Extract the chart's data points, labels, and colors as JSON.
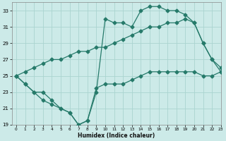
{
  "xlabel": "Humidex (Indice chaleur)",
  "bg_color": "#cceae8",
  "grid_color": "#aad4d0",
  "line_color": "#267a6a",
  "line1_x": [
    0,
    1,
    2,
    3,
    4,
    5,
    6,
    7,
    8,
    9,
    10,
    11,
    12,
    13,
    14,
    15,
    16,
    17,
    18,
    19,
    20,
    21,
    22,
    23
  ],
  "line1_y": [
    25,
    24,
    23,
    23,
    22,
    21,
    20.5,
    19,
    19.5,
    23,
    32,
    31.5,
    31.5,
    31,
    33,
    33.5,
    33.5,
    33,
    33,
    32.5,
    31.5,
    29,
    27,
    26
  ],
  "line2_x": [
    0,
    1,
    2,
    3,
    4,
    5,
    6,
    7,
    8,
    9,
    10,
    11,
    12,
    13,
    14,
    15,
    16,
    17,
    18,
    19,
    20,
    21,
    22,
    23
  ],
  "line2_y": [
    25,
    25.5,
    26,
    26.5,
    27,
    27,
    27.5,
    28,
    28,
    28.5,
    28.5,
    29,
    29.5,
    30,
    30.5,
    31,
    31,
    31.5,
    31.5,
    32,
    31.5,
    29,
    27,
    25.5
  ],
  "line3_x": [
    0,
    1,
    2,
    3,
    4,
    5,
    6,
    7,
    8,
    9,
    10,
    11,
    12,
    13,
    14,
    15,
    16,
    17,
    18,
    19,
    20,
    21,
    22,
    23
  ],
  "line3_y": [
    25,
    24,
    23,
    22,
    21.5,
    21,
    20.5,
    19,
    19.5,
    23.5,
    24,
    24,
    24,
    24.5,
    25,
    25.5,
    25.5,
    25.5,
    25.5,
    25.5,
    25.5,
    25,
    25,
    25.5
  ],
  "ylim": [
    19,
    34
  ],
  "xlim": [
    -0.5,
    23
  ],
  "yticks": [
    19,
    21,
    23,
    25,
    27,
    29,
    31,
    33
  ],
  "xticks": [
    0,
    1,
    2,
    3,
    4,
    5,
    6,
    7,
    8,
    9,
    10,
    11,
    12,
    13,
    14,
    15,
    16,
    17,
    18,
    19,
    20,
    21,
    22,
    23
  ]
}
